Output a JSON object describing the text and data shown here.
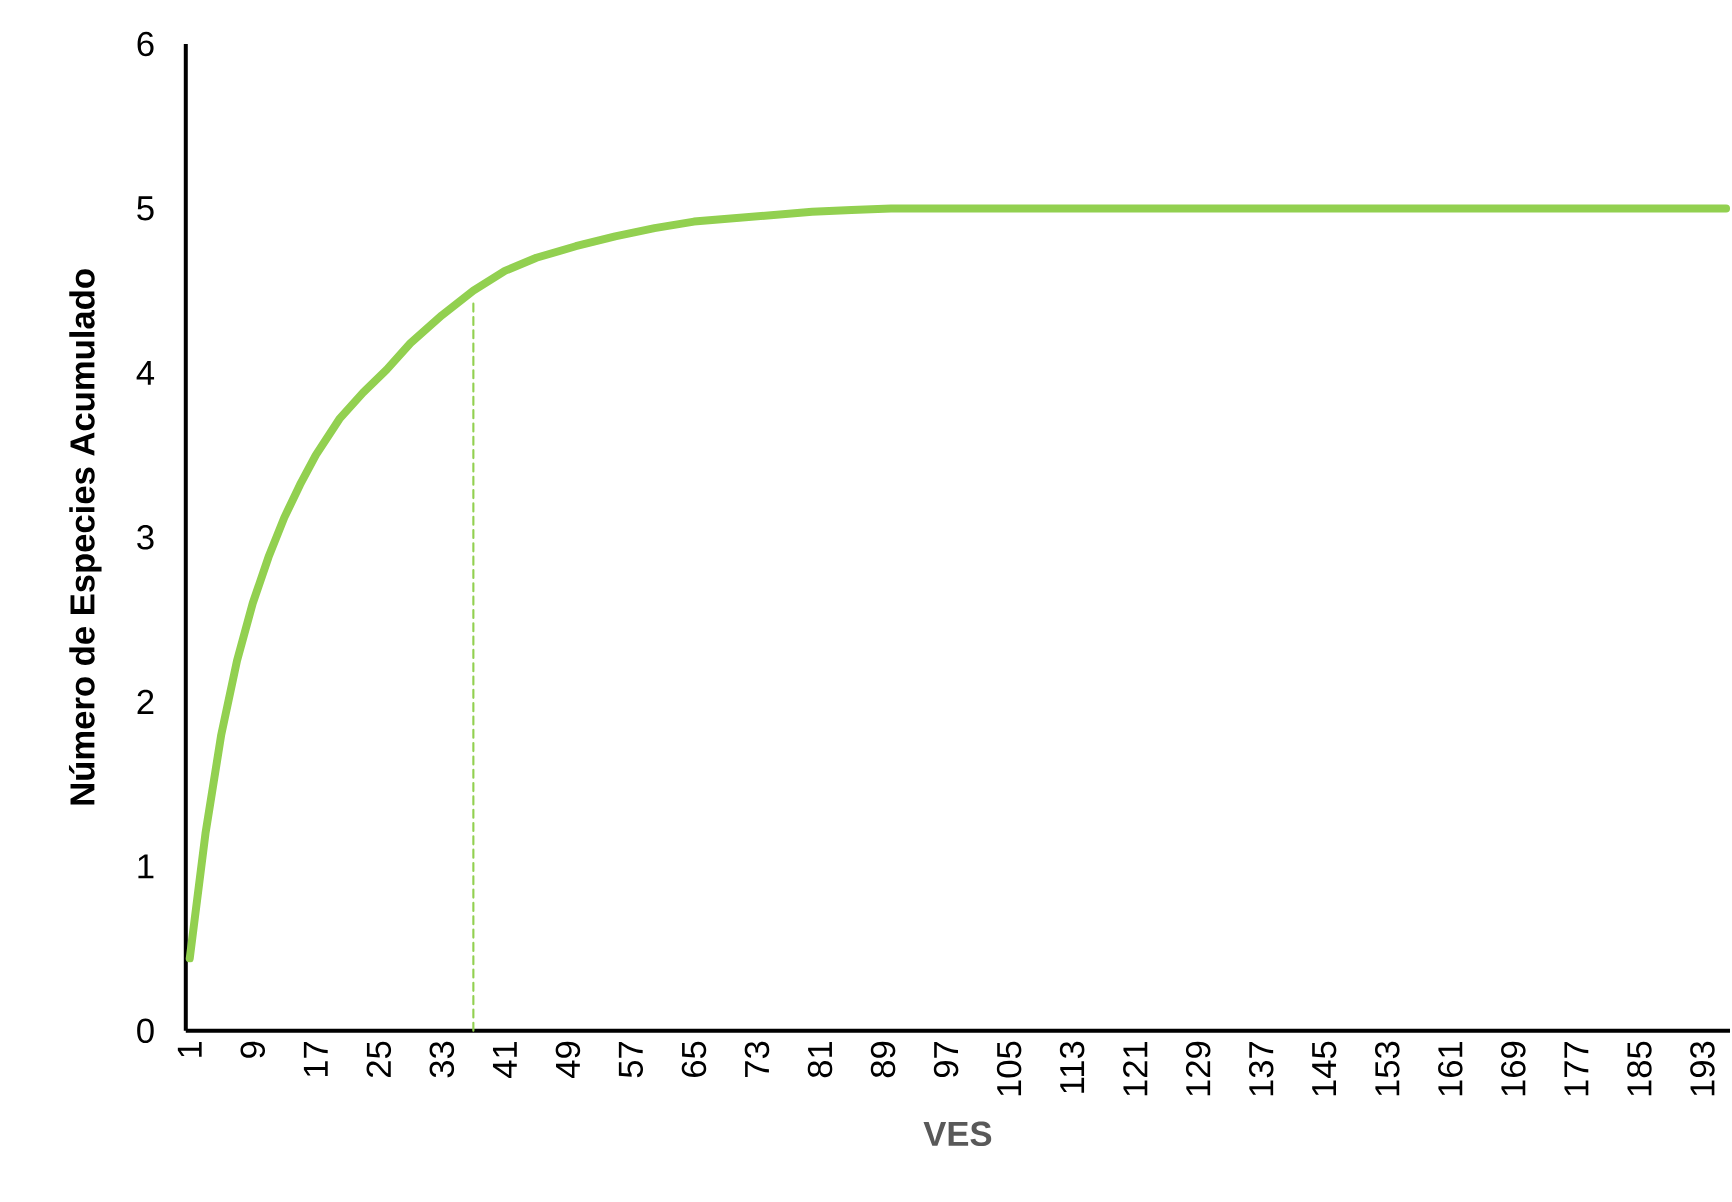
{
  "chart_data": {
    "type": "line",
    "xlabel": "VES",
    "ylabel": "Número de Especies Acumulado",
    "xlim": [
      0.5,
      196.5
    ],
    "xticks": [
      1,
      9,
      17,
      25,
      33,
      41,
      49,
      57,
      65,
      73,
      81,
      89,
      97,
      105,
      113,
      121,
      129,
      137,
      145,
      153,
      161,
      169,
      177,
      185,
      193
    ],
    "ylim": [
      0,
      6
    ],
    "yticks": [
      0,
      1,
      2,
      3,
      4,
      5,
      6
    ],
    "series": [
      {
        "color": "#92d050",
        "line_style": "solid",
        "x": [
          1,
          3,
          5,
          7,
          9,
          11,
          13,
          15,
          17,
          20,
          23,
          26,
          29,
          33,
          37,
          41,
          45,
          50,
          55,
          60,
          65,
          70,
          75,
          80,
          85,
          90,
          196
        ],
        "values": [
          0.44,
          1.2,
          1.8,
          2.25,
          2.6,
          2.88,
          3.12,
          3.32,
          3.5,
          3.72,
          3.88,
          4.02,
          4.18,
          4.35,
          4.5,
          4.62,
          4.7,
          4.77,
          4.83,
          4.88,
          4.92,
          4.94,
          4.96,
          4.98,
          4.99,
          5.0,
          5.0
        ]
      },
      {
        "color": "#92d050",
        "line_style": "dashed",
        "x": [
          37,
          37
        ],
        "values": [
          0,
          4.45
        ]
      }
    ]
  }
}
